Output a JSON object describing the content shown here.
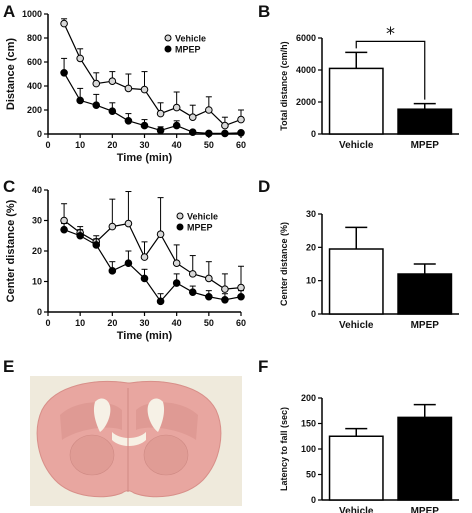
{
  "chart_data": [
    {
      "panel": "A",
      "type": "line",
      "xlabel": "Time (min)",
      "ylabel": "Distance (cm)",
      "xlim": [
        0,
        60
      ],
      "ylim": [
        0,
        1000
      ],
      "x_ticks": [
        0,
        10,
        20,
        30,
        40,
        50,
        60
      ],
      "y_ticks": [
        0,
        200,
        400,
        600,
        800,
        1000
      ],
      "x": [
        5,
        10,
        15,
        20,
        25,
        30,
        35,
        40,
        45,
        50,
        55,
        60
      ],
      "series": [
        {
          "name": "Vehicle",
          "values": [
            920,
            630,
            420,
            440,
            380,
            370,
            170,
            220,
            140,
            200,
            70,
            120
          ],
          "errors": [
            40,
            80,
            90,
            80,
            120,
            150,
            90,
            130,
            100,
            110,
            70,
            80
          ],
          "marker": "open"
        },
        {
          "name": "MPEP",
          "values": [
            510,
            280,
            240,
            190,
            110,
            70,
            30,
            70,
            15,
            5,
            5,
            10
          ],
          "errors": [
            120,
            100,
            90,
            70,
            60,
            50,
            30,
            40,
            15,
            10,
            10,
            10
          ],
          "marker": "filled"
        }
      ],
      "legend": "top-right"
    },
    {
      "panel": "B",
      "type": "bar",
      "ylabel": "Total distance (cm/h)",
      "ylim": [
        0,
        6000
      ],
      "y_ticks": [
        0,
        2000,
        4000,
        6000
      ],
      "categories": [
        "Vehicle",
        "MPEP"
      ],
      "values": [
        4100,
        1550
      ],
      "errors": [
        1000,
        350
      ],
      "fills": [
        "#ffffff",
        "#000000"
      ],
      "annotation": "*"
    },
    {
      "panel": "C",
      "type": "line",
      "xlabel": "Time (min)",
      "ylabel": "Center distance (%)",
      "xlim": [
        0,
        60
      ],
      "ylim": [
        0,
        40
      ],
      "x_ticks": [
        0,
        10,
        20,
        30,
        40,
        50,
        60
      ],
      "y_ticks": [
        0,
        10,
        20,
        30,
        40
      ],
      "x": [
        5,
        10,
        15,
        20,
        25,
        30,
        35,
        40,
        45,
        50,
        55,
        60
      ],
      "series": [
        {
          "name": "Vehicle",
          "values": [
            30,
            26,
            23,
            28,
            29,
            18,
            25.5,
            16,
            12.5,
            11,
            7.5,
            8
          ],
          "errors": [
            5.5,
            2,
            2,
            9,
            10.5,
            5,
            12,
            6,
            6,
            5.5,
            5,
            7
          ],
          "marker": "open"
        },
        {
          "name": "MPEP",
          "values": [
            27,
            25,
            22,
            13.5,
            16,
            11,
            3.5,
            9.5,
            6.5,
            5,
            4,
            5
          ],
          "errors": [
            2,
            2,
            2,
            3,
            4,
            3,
            2.5,
            3,
            2,
            2,
            2,
            2
          ],
          "marker": "filled"
        }
      ],
      "legend": "top-right"
    },
    {
      "panel": "D",
      "type": "bar",
      "ylabel": "Center distance (%)",
      "ylim": [
        0,
        30
      ],
      "y_ticks": [
        0,
        10,
        20,
        30
      ],
      "categories": [
        "Vehicle",
        "MPEP"
      ],
      "values": [
        19.5,
        12
      ],
      "errors": [
        6.5,
        3
      ],
      "fills": [
        "#ffffff",
        "#000000"
      ]
    },
    {
      "panel": "F",
      "type": "bar",
      "ylabel": "Latency to fall (sec)",
      "ylim": [
        0,
        200
      ],
      "y_ticks": [
        0,
        50,
        100,
        150,
        200
      ],
      "categories": [
        "Vehicle",
        "MPEP"
      ],
      "values": [
        125,
        162
      ],
      "errors": [
        15,
        25
      ],
      "fills": [
        "#ffffff",
        "#000000"
      ]
    }
  ],
  "panel_letters": {
    "a": "A",
    "b": "B",
    "c": "C",
    "d": "D",
    "e": "E",
    "f": "F"
  },
  "image_e": {
    "tissue_color": "#e8a6a0",
    "background_color": "#efeadc"
  }
}
